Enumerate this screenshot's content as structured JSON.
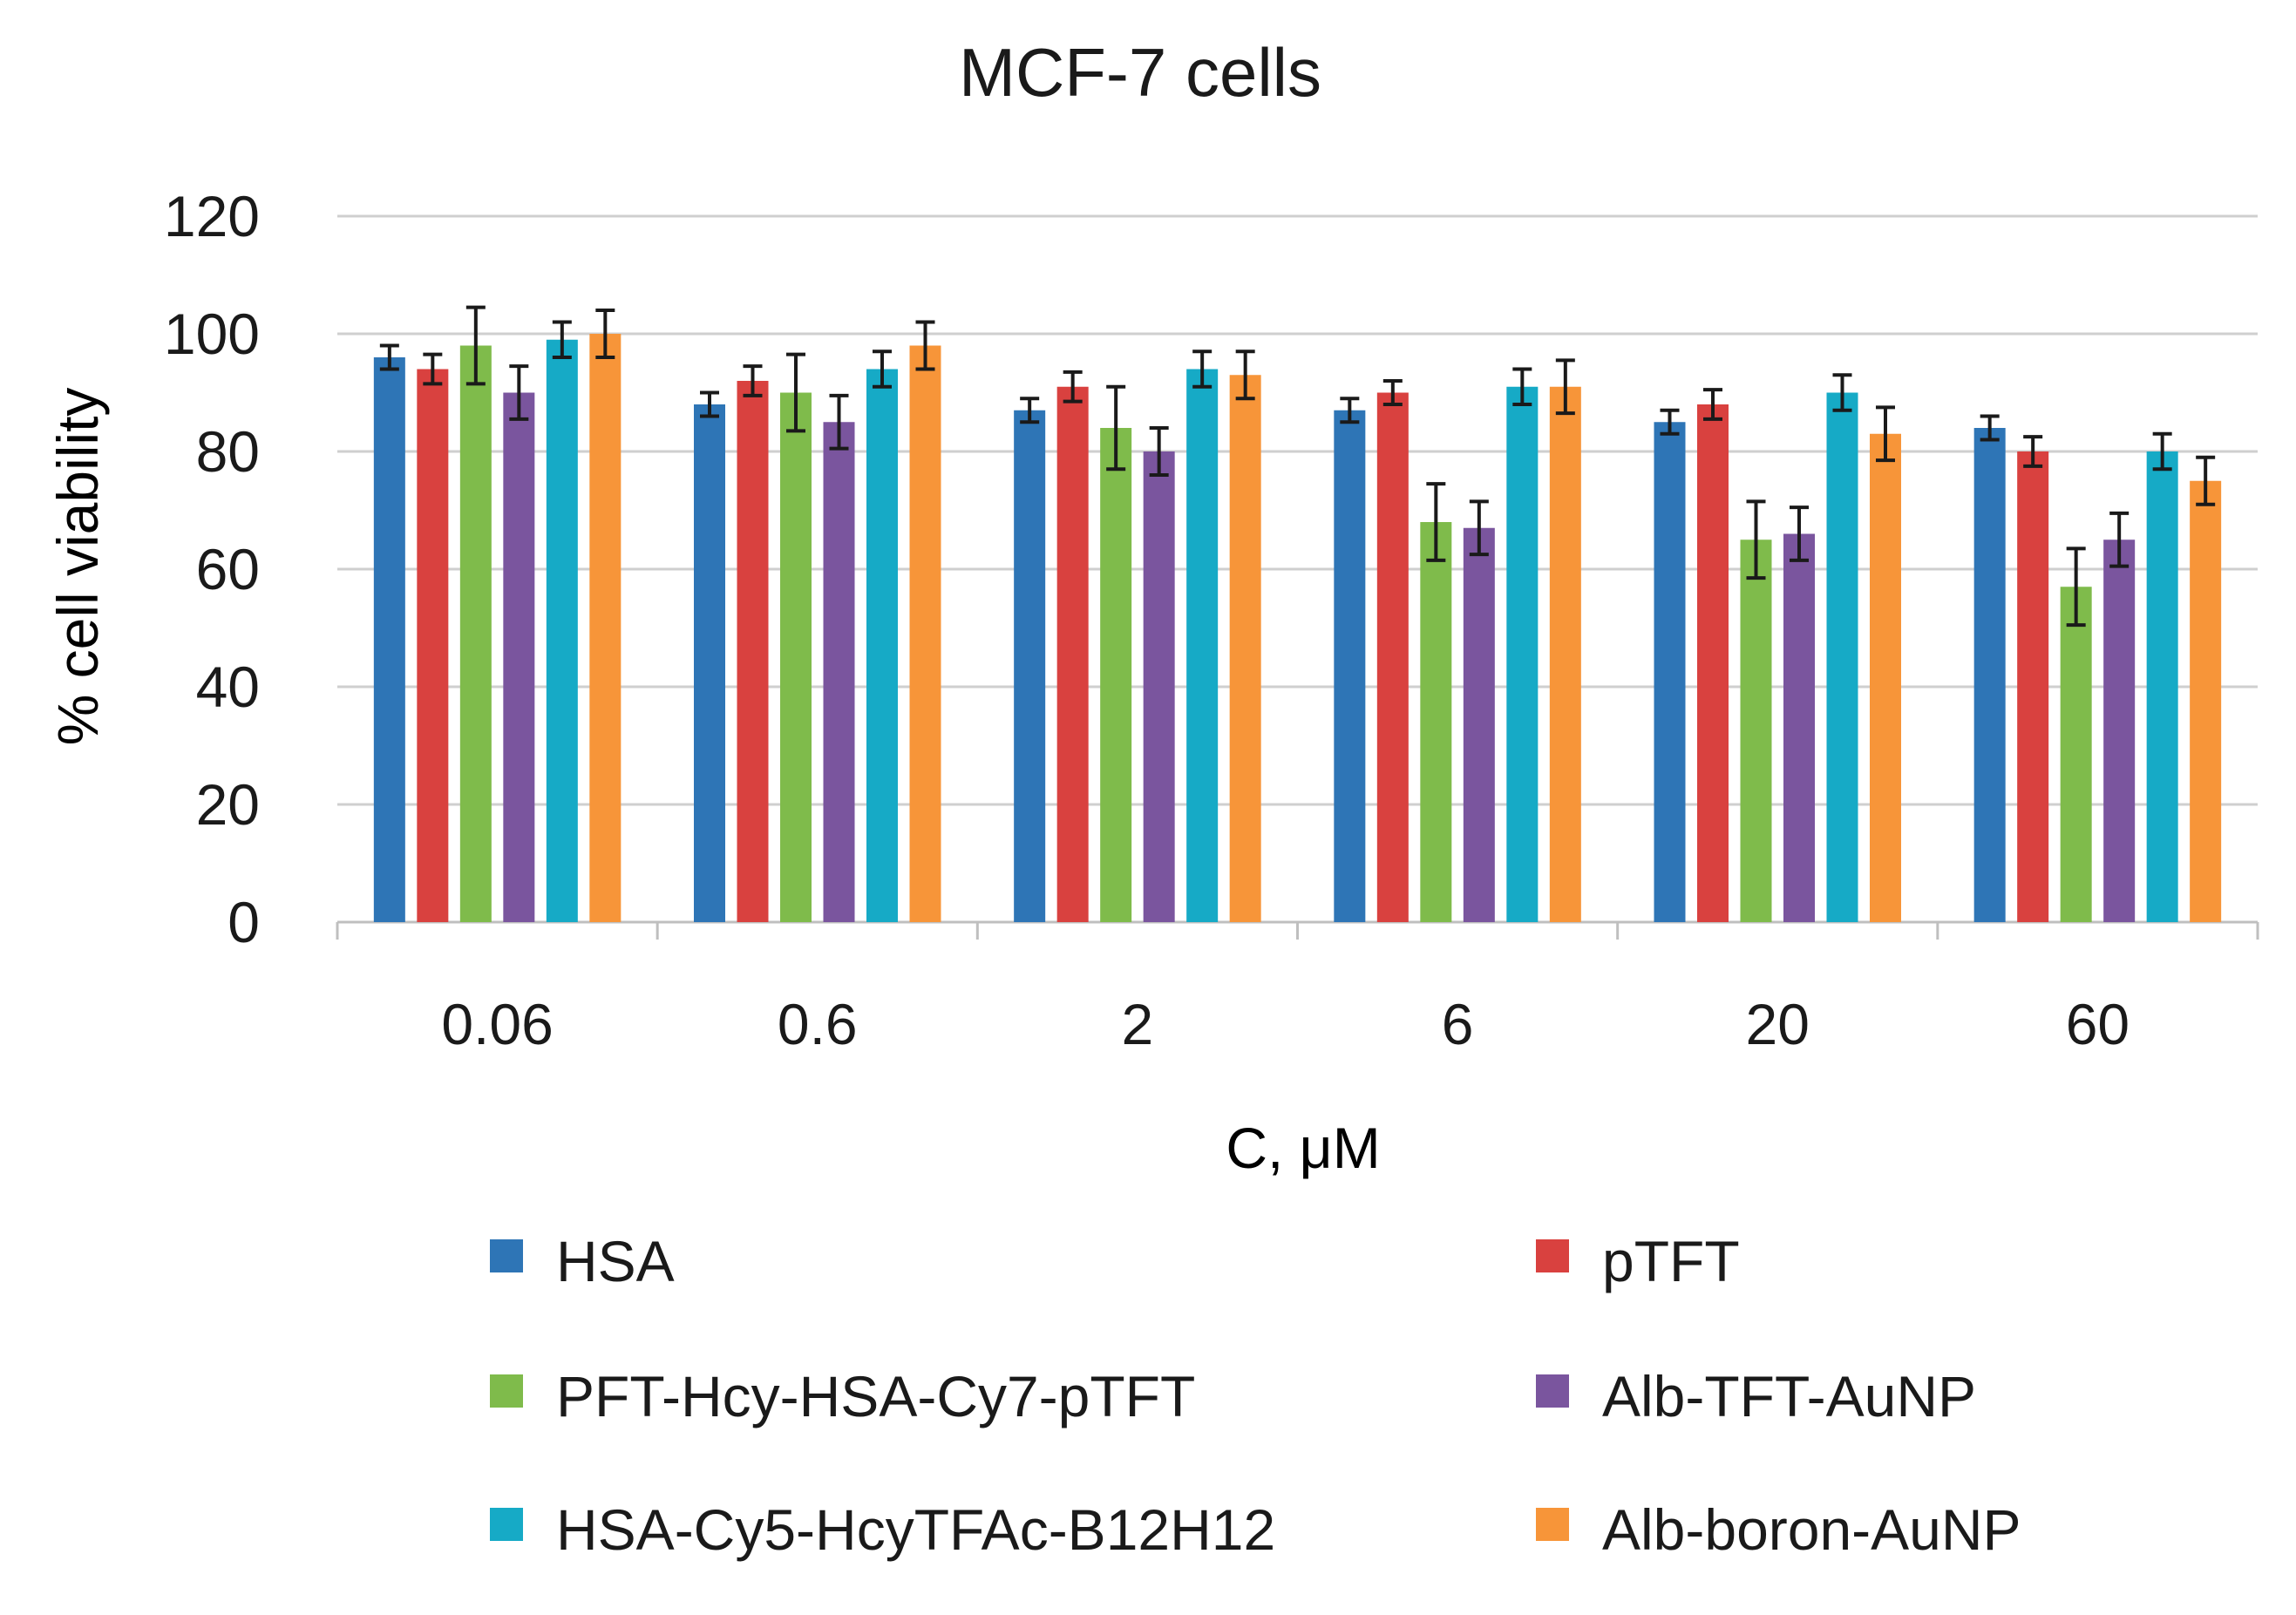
{
  "chart_data": {
    "type": "bar",
    "title": "MCF-7 cells",
    "xlabel": "C, μM",
    "ylabel": "% cell viability",
    "ylim": [
      0,
      120
    ],
    "yticks": [
      0,
      20,
      40,
      60,
      80,
      100,
      120
    ],
    "ytick_labels": [
      "0",
      "20",
      "40",
      "60",
      "80",
      "100",
      "120"
    ],
    "grid": true,
    "legend_position": "bottom",
    "categories": [
      "0.06",
      "0.6",
      "2",
      "6",
      "20",
      "60"
    ],
    "series": [
      {
        "name": "HSA",
        "color": "#2e75b6",
        "values": [
          96,
          88,
          87,
          87,
          85,
          84
        ],
        "errors": [
          2,
          2,
          2,
          2,
          2,
          2
        ]
      },
      {
        "name": "pTFT",
        "color": "#d9413f",
        "values": [
          94,
          92,
          91,
          90,
          88,
          80
        ],
        "errors": [
          2.5,
          2.5,
          2.5,
          2,
          2.5,
          2.5
        ]
      },
      {
        "name": "PFT-Hcy-HSA-Cy7-pTFT",
        "color": "#7fbb4b",
        "values": [
          98,
          90,
          84,
          68,
          65,
          57
        ],
        "errors": [
          6.5,
          6.5,
          7,
          6.5,
          6.5,
          6.5
        ]
      },
      {
        "name": "Alb-TFT-AuNP",
        "color": "#7a559e",
        "values": [
          90,
          85,
          80,
          67,
          66,
          65
        ],
        "errors": [
          4.5,
          4.5,
          4,
          4.5,
          4.5,
          4.5
        ]
      },
      {
        "name": "HSA-Cy5-HcyTFAc-B12H12",
        "color": "#16aac6",
        "values": [
          99,
          94,
          94,
          91,
          90,
          80
        ],
        "errors": [
          3,
          3,
          3,
          3,
          3,
          3
        ]
      },
      {
        "name": "Alb-boron-AuNP",
        "color": "#f79539",
        "values": [
          100,
          98,
          93,
          91,
          83,
          75
        ],
        "errors": [
          4,
          4,
          4,
          4.5,
          4.5,
          4
        ]
      }
    ]
  }
}
